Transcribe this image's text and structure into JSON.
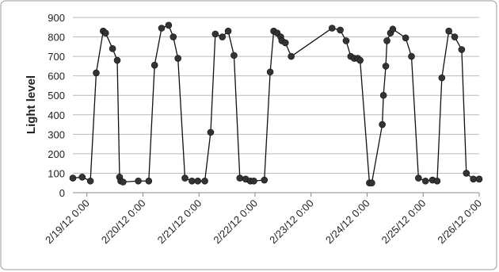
{
  "chart_data": {
    "type": "line",
    "y_label": "Light level",
    "x": [
      "2/18/12 18:00",
      "2/18/12 22:00",
      "2/19/12 1:30",
      "2/19/12 4:00",
      "2/19/12 7:00",
      "2/19/12 8:00",
      "2/19/12 11:00",
      "2/19/12 13:00",
      "2/19/12 14:00",
      "2/19/12 14:30",
      "2/19/12 15:30",
      "2/19/12 22:00",
      "2/20/12 2:30",
      "2/20/12 5:00",
      "2/20/12 8:00",
      "2/20/12 11:00",
      "2/20/12 13:00",
      "2/20/12 15:00",
      "2/20/12 18:00",
      "2/20/12 21:00",
      "2/20/12 23:30",
      "2/21/12 2:30",
      "2/21/12 5:00",
      "2/21/12 7:00",
      "2/21/12 10:00",
      "2/21/12 12:30",
      "2/21/12 15:00",
      "2/21/12 17:30",
      "2/21/12 20:00",
      "2/21/12 22:00",
      "2/21/12 23:30",
      "2/22/12 4:00",
      "2/22/12 6:30",
      "2/22/12 8:00",
      "2/22/12 9:30",
      "2/22/12 11:00",
      "2/22/12 11:30",
      "2/22/12 13:00",
      "2/22/12 15:30",
      "2/23/12 9:00",
      "2/23/12 12:30",
      "2/23/12 15:00",
      "2/23/12 17:00",
      "2/23/12 18:30",
      "2/23/12 20:00",
      "2/23/12 21:00",
      "2/24/12 1:00",
      "2/24/12 2:00",
      "2/24/12 6:30",
      "2/24/12 7:00",
      "2/24/12 8:00",
      "2/24/12 8:30",
      "2/24/12 10:00",
      "2/24/12 11:00",
      "2/24/12 16:30",
      "2/24/12 19:00",
      "2/24/12 22:00",
      "2/25/12 1:00",
      "2/25/12 4:00",
      "2/25/12 6:00",
      "2/25/12 8:00",
      "2/25/12 11:00",
      "2/25/12 13:30",
      "2/25/12 16:30",
      "2/25/12 18:30",
      "2/25/12 21:30",
      "2/26/12 0:00"
    ],
    "series": [
      {
        "name": "Light level",
        "color": "#333333",
        "values": [
          75,
          80,
          60,
          615,
          830,
          820,
          740,
          680,
          80,
          60,
          55,
          60,
          60,
          655,
          845,
          860,
          800,
          690,
          75,
          60,
          60,
          60,
          310,
          815,
          800,
          830,
          705,
          75,
          70,
          60,
          60,
          65,
          620,
          830,
          820,
          800,
          780,
          770,
          700,
          845,
          835,
          780,
          700,
          690,
          690,
          680,
          50,
          50,
          350,
          500,
          650,
          780,
          820,
          840,
          795,
          700,
          75,
          60,
          65,
          60,
          590,
          830,
          800,
          735,
          100,
          70,
          70
        ]
      }
    ],
    "xlim": [
      "2/18/12 18:00",
      "2/26/12 0:00"
    ],
    "xticks": [
      "2/19/12 0:00",
      "2/20/12 0:00",
      "2/21/12 0:00",
      "2/22/12 0:00",
      "2/23/12 0:00",
      "2/24/12 0:00",
      "2/25/12 0:00",
      "2/26/12 0:00"
    ],
    "ylim": [
      0,
      900
    ],
    "yticks": [
      0,
      100,
      200,
      300,
      400,
      500,
      600,
      700,
      800,
      900
    ],
    "grid": true
  }
}
